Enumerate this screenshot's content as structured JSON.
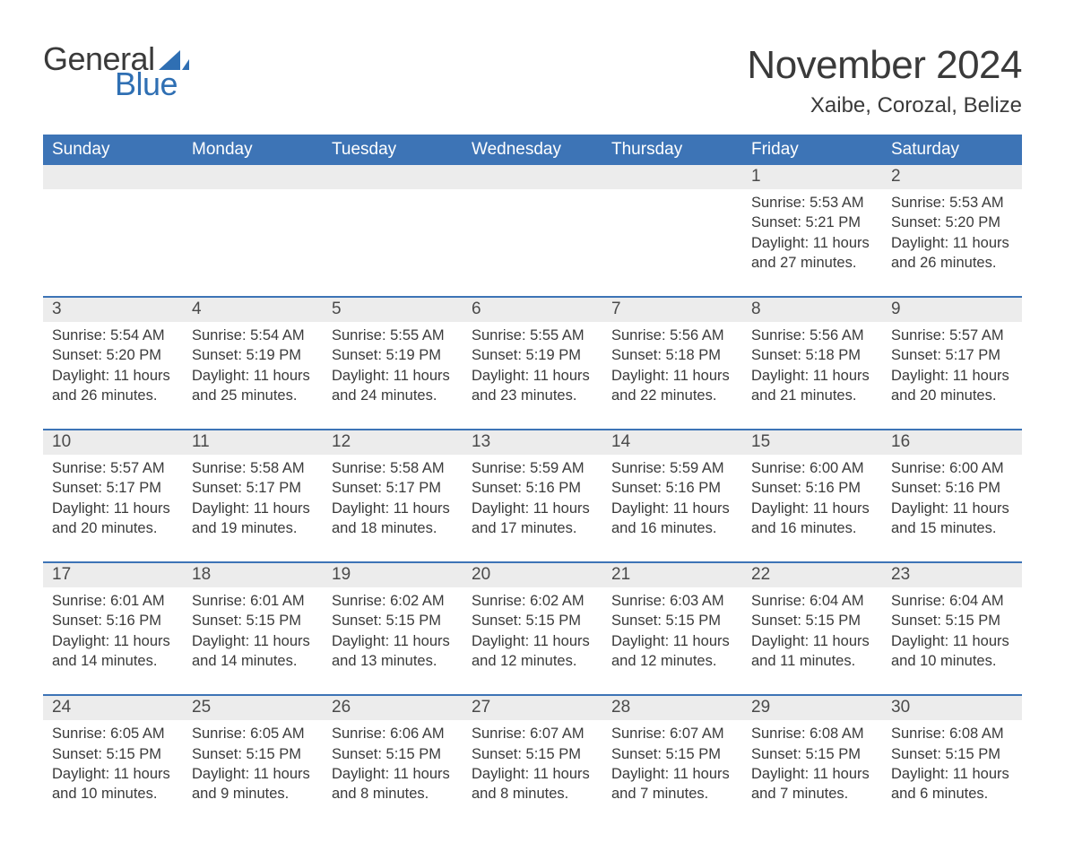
{
  "logo": {
    "word1": "General",
    "word2": "Blue",
    "sail_color": "#2f6fb3",
    "general_color": "#3a3a3a",
    "blue_color": "#2f6fb3"
  },
  "header": {
    "month_title": "November 2024",
    "location": "Xaibe, Corozal, Belize"
  },
  "colors": {
    "dow_bg": "#3d74b6",
    "dow_fg": "#ffffff",
    "daynum_bg": "#ececec",
    "week_border": "#3d74b6",
    "text": "#3a3a3a",
    "page_bg": "#ffffff"
  },
  "typography": {
    "month_title_fontsize": 44,
    "location_fontsize": 24,
    "dow_fontsize": 19,
    "daynum_fontsize": 19,
    "body_fontsize": 16.5,
    "logo_fontsize": 36
  },
  "calendar": {
    "type": "table",
    "days_of_week": [
      "Sunday",
      "Monday",
      "Tuesday",
      "Wednesday",
      "Thursday",
      "Friday",
      "Saturday"
    ],
    "sunrise_label": "Sunrise:",
    "sunset_label": "Sunset:",
    "daylight_label": "Daylight:",
    "weeks": [
      {
        "days": [
          {
            "num": "",
            "sunrise": "",
            "sunset": "",
            "daylight1": "",
            "daylight2": ""
          },
          {
            "num": "",
            "sunrise": "",
            "sunset": "",
            "daylight1": "",
            "daylight2": ""
          },
          {
            "num": "",
            "sunrise": "",
            "sunset": "",
            "daylight1": "",
            "daylight2": ""
          },
          {
            "num": "",
            "sunrise": "",
            "sunset": "",
            "daylight1": "",
            "daylight2": ""
          },
          {
            "num": "",
            "sunrise": "",
            "sunset": "",
            "daylight1": "",
            "daylight2": ""
          },
          {
            "num": "1",
            "sunrise": "5:53 AM",
            "sunset": "5:21 PM",
            "daylight1": "11 hours",
            "daylight2": "and 27 minutes."
          },
          {
            "num": "2",
            "sunrise": "5:53 AM",
            "sunset": "5:20 PM",
            "daylight1": "11 hours",
            "daylight2": "and 26 minutes."
          }
        ]
      },
      {
        "days": [
          {
            "num": "3",
            "sunrise": "5:54 AM",
            "sunset": "5:20 PM",
            "daylight1": "11 hours",
            "daylight2": "and 26 minutes."
          },
          {
            "num": "4",
            "sunrise": "5:54 AM",
            "sunset": "5:19 PM",
            "daylight1": "11 hours",
            "daylight2": "and 25 minutes."
          },
          {
            "num": "5",
            "sunrise": "5:55 AM",
            "sunset": "5:19 PM",
            "daylight1": "11 hours",
            "daylight2": "and 24 minutes."
          },
          {
            "num": "6",
            "sunrise": "5:55 AM",
            "sunset": "5:19 PM",
            "daylight1": "11 hours",
            "daylight2": "and 23 minutes."
          },
          {
            "num": "7",
            "sunrise": "5:56 AM",
            "sunset": "5:18 PM",
            "daylight1": "11 hours",
            "daylight2": "and 22 minutes."
          },
          {
            "num": "8",
            "sunrise": "5:56 AM",
            "sunset": "5:18 PM",
            "daylight1": "11 hours",
            "daylight2": "and 21 minutes."
          },
          {
            "num": "9",
            "sunrise": "5:57 AM",
            "sunset": "5:17 PM",
            "daylight1": "11 hours",
            "daylight2": "and 20 minutes."
          }
        ]
      },
      {
        "days": [
          {
            "num": "10",
            "sunrise": "5:57 AM",
            "sunset": "5:17 PM",
            "daylight1": "11 hours",
            "daylight2": "and 20 minutes."
          },
          {
            "num": "11",
            "sunrise": "5:58 AM",
            "sunset": "5:17 PM",
            "daylight1": "11 hours",
            "daylight2": "and 19 minutes."
          },
          {
            "num": "12",
            "sunrise": "5:58 AM",
            "sunset": "5:17 PM",
            "daylight1": "11 hours",
            "daylight2": "and 18 minutes."
          },
          {
            "num": "13",
            "sunrise": "5:59 AM",
            "sunset": "5:16 PM",
            "daylight1": "11 hours",
            "daylight2": "and 17 minutes."
          },
          {
            "num": "14",
            "sunrise": "5:59 AM",
            "sunset": "5:16 PM",
            "daylight1": "11 hours",
            "daylight2": "and 16 minutes."
          },
          {
            "num": "15",
            "sunrise": "6:00 AM",
            "sunset": "5:16 PM",
            "daylight1": "11 hours",
            "daylight2": "and 16 minutes."
          },
          {
            "num": "16",
            "sunrise": "6:00 AM",
            "sunset": "5:16 PM",
            "daylight1": "11 hours",
            "daylight2": "and 15 minutes."
          }
        ]
      },
      {
        "days": [
          {
            "num": "17",
            "sunrise": "6:01 AM",
            "sunset": "5:16 PM",
            "daylight1": "11 hours",
            "daylight2": "and 14 minutes."
          },
          {
            "num": "18",
            "sunrise": "6:01 AM",
            "sunset": "5:15 PM",
            "daylight1": "11 hours",
            "daylight2": "and 14 minutes."
          },
          {
            "num": "19",
            "sunrise": "6:02 AM",
            "sunset": "5:15 PM",
            "daylight1": "11 hours",
            "daylight2": "and 13 minutes."
          },
          {
            "num": "20",
            "sunrise": "6:02 AM",
            "sunset": "5:15 PM",
            "daylight1": "11 hours",
            "daylight2": "and 12 minutes."
          },
          {
            "num": "21",
            "sunrise": "6:03 AM",
            "sunset": "5:15 PM",
            "daylight1": "11 hours",
            "daylight2": "and 12 minutes."
          },
          {
            "num": "22",
            "sunrise": "6:04 AM",
            "sunset": "5:15 PM",
            "daylight1": "11 hours",
            "daylight2": "and 11 minutes."
          },
          {
            "num": "23",
            "sunrise": "6:04 AM",
            "sunset": "5:15 PM",
            "daylight1": "11 hours",
            "daylight2": "and 10 minutes."
          }
        ]
      },
      {
        "days": [
          {
            "num": "24",
            "sunrise": "6:05 AM",
            "sunset": "5:15 PM",
            "daylight1": "11 hours",
            "daylight2": "and 10 minutes."
          },
          {
            "num": "25",
            "sunrise": "6:05 AM",
            "sunset": "5:15 PM",
            "daylight1": "11 hours",
            "daylight2": "and 9 minutes."
          },
          {
            "num": "26",
            "sunrise": "6:06 AM",
            "sunset": "5:15 PM",
            "daylight1": "11 hours",
            "daylight2": "and 8 minutes."
          },
          {
            "num": "27",
            "sunrise": "6:07 AM",
            "sunset": "5:15 PM",
            "daylight1": "11 hours",
            "daylight2": "and 8 minutes."
          },
          {
            "num": "28",
            "sunrise": "6:07 AM",
            "sunset": "5:15 PM",
            "daylight1": "11 hours",
            "daylight2": "and 7 minutes."
          },
          {
            "num": "29",
            "sunrise": "6:08 AM",
            "sunset": "5:15 PM",
            "daylight1": "11 hours",
            "daylight2": "and 7 minutes."
          },
          {
            "num": "30",
            "sunrise": "6:08 AM",
            "sunset": "5:15 PM",
            "daylight1": "11 hours",
            "daylight2": "and 6 minutes."
          }
        ]
      }
    ]
  }
}
